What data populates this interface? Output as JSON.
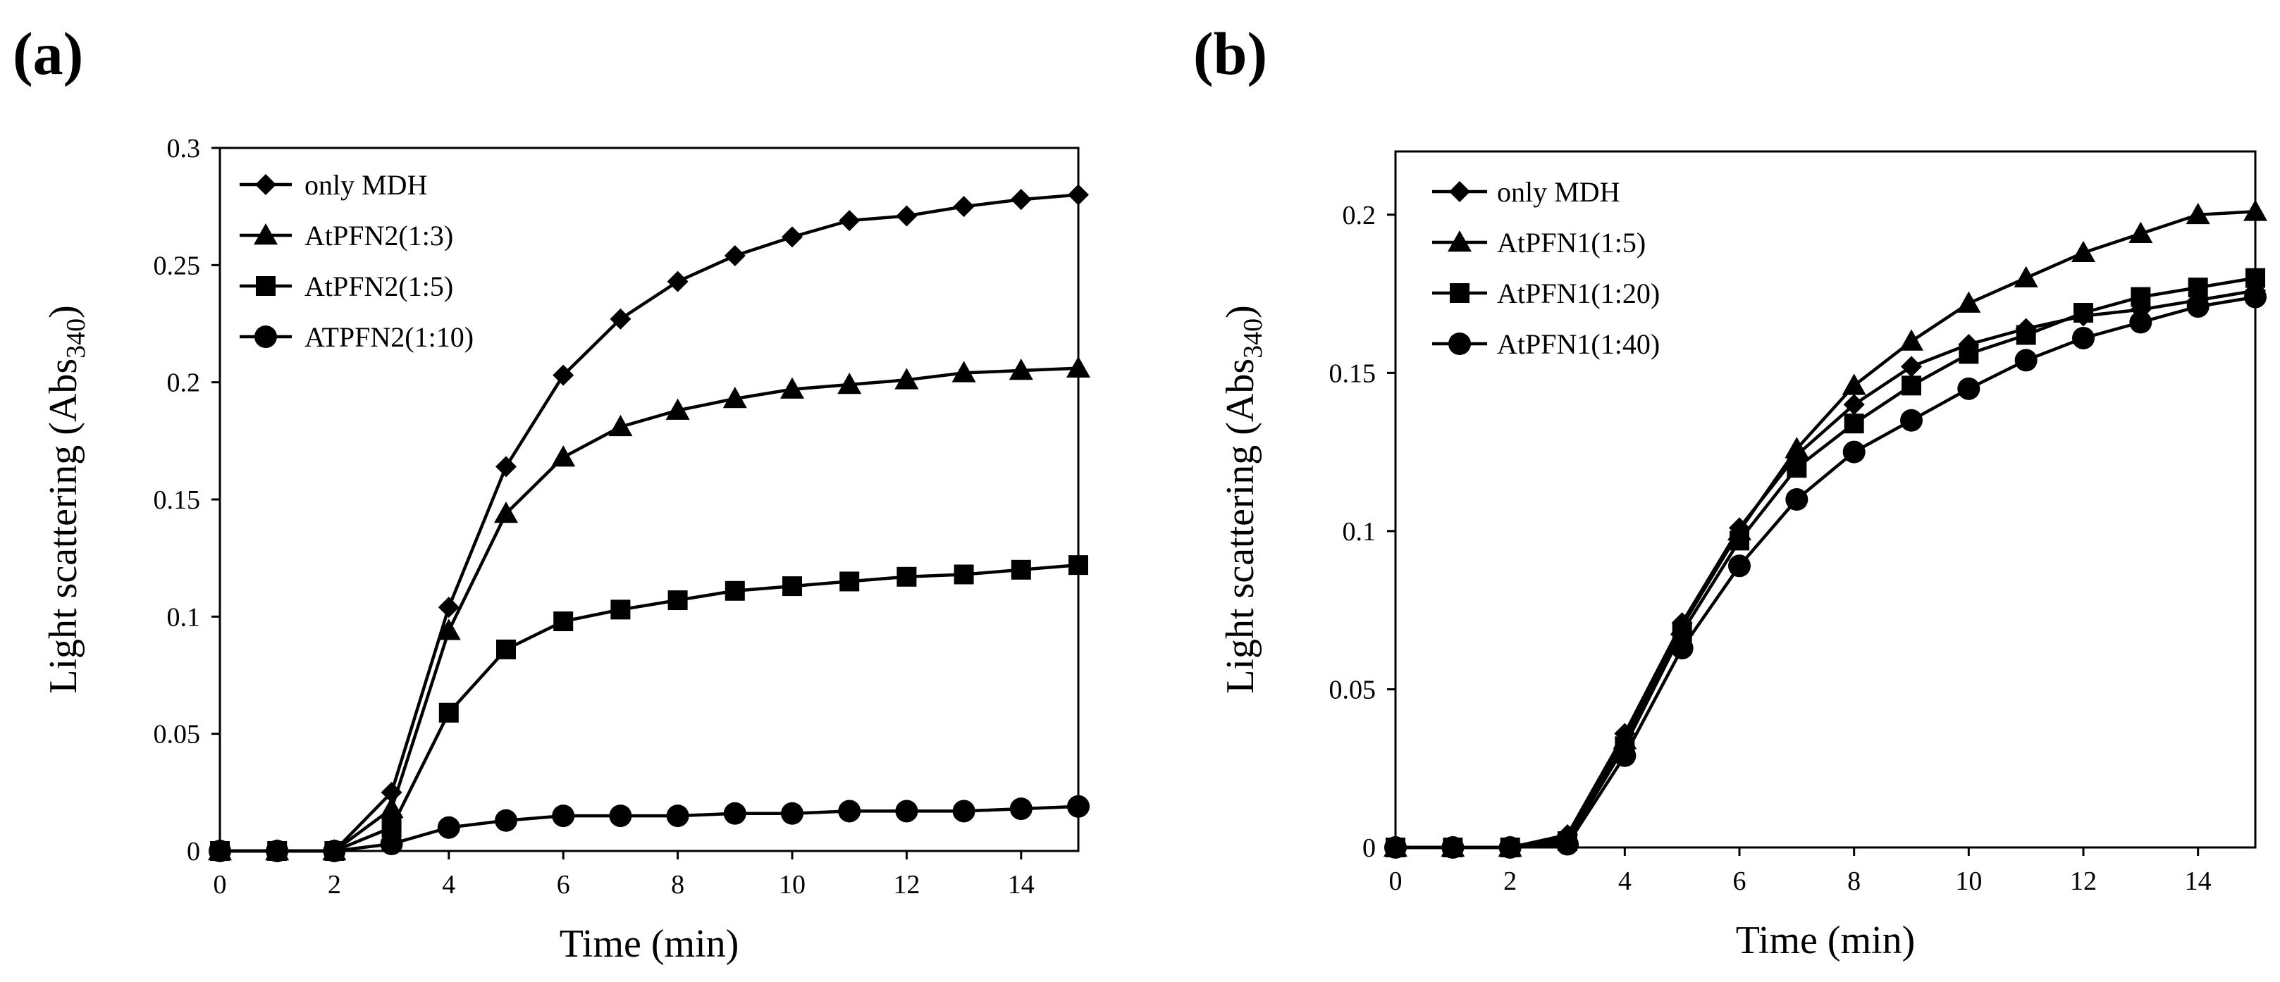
{
  "chart_data": [
    {
      "panel": "(a)",
      "type": "line",
      "title": "",
      "xlabel": "Time (min)",
      "ylabel_main": "Light scattering (Abs",
      "ylabel_sub": "340",
      "ylabel_close": ")",
      "xlim": [
        0,
        15
      ],
      "ylim": [
        0,
        0.3
      ],
      "xticks": [
        0,
        2,
        4,
        6,
        8,
        10,
        12,
        14
      ],
      "xtick_labels": [
        "0",
        "2",
        "4",
        "6",
        "8",
        "10",
        "12",
        "14"
      ],
      "yticks": [
        0,
        0.05,
        0.1,
        0.15,
        0.2,
        0.25,
        0.3
      ],
      "ytick_labels": [
        "0",
        "0.05",
        "0.1",
        "0.15",
        "0.2",
        "0.25",
        "0.3"
      ],
      "legend_position": "top-left",
      "x": [
        0,
        1,
        2,
        3,
        4,
        5,
        6,
        7,
        8,
        9,
        10,
        11,
        12,
        13,
        14,
        15
      ],
      "series": [
        {
          "name": "only MDH",
          "marker": "diamond",
          "values": [
            0,
            0,
            0,
            0.025,
            0.104,
            0.164,
            0.203,
            0.227,
            0.243,
            0.254,
            0.262,
            0.269,
            0.271,
            0.275,
            0.278,
            0.28
          ]
        },
        {
          "name": "AtPFN2(1:3)",
          "marker": "triangle",
          "values": [
            0,
            0,
            0,
            0.018,
            0.094,
            0.144,
            0.168,
            0.181,
            0.188,
            0.193,
            0.197,
            0.199,
            0.201,
            0.204,
            0.205,
            0.206
          ]
        },
        {
          "name": "AtPFN2(1:5)",
          "marker": "square",
          "values": [
            0,
            0,
            0,
            0.01,
            0.059,
            0.086,
            0.098,
            0.103,
            0.107,
            0.111,
            0.113,
            0.115,
            0.117,
            0.118,
            0.12,
            0.122
          ]
        },
        {
          "name": "ATPFN2(1:10)",
          "marker": "circle",
          "values": [
            0,
            0,
            0,
            0.003,
            0.01,
            0.013,
            0.015,
            0.015,
            0.015,
            0.016,
            0.016,
            0.017,
            0.017,
            0.017,
            0.018,
            0.019
          ]
        }
      ]
    },
    {
      "panel": "(b)",
      "type": "line",
      "title": "",
      "xlabel": "Time (min)",
      "ylabel_main": "Light scattering (Abs",
      "ylabel_sub": "340",
      "ylabel_close": ")",
      "xlim": [
        0,
        15
      ],
      "ylim": [
        0,
        0.22
      ],
      "xticks": [
        0,
        2,
        4,
        6,
        8,
        10,
        12,
        14
      ],
      "xtick_labels": [
        "0",
        "2",
        "4",
        "6",
        "8",
        "10",
        "12",
        "14"
      ],
      "yticks": [
        0,
        0.05,
        0.1,
        0.15,
        0.2
      ],
      "ytick_labels": [
        "0",
        "0.05",
        "0.1",
        "0.15",
        "0.2"
      ],
      "legend_position": "top-left",
      "x": [
        0,
        1,
        2,
        3,
        4,
        5,
        6,
        7,
        8,
        9,
        10,
        11,
        12,
        13,
        14,
        15
      ],
      "series": [
        {
          "name": "only MDH",
          "marker": "diamond",
          "values": [
            0,
            0,
            0,
            0.004,
            0.036,
            0.071,
            0.101,
            0.124,
            0.14,
            0.152,
            0.159,
            0.164,
            0.168,
            0.17,
            0.173,
            0.176
          ]
        },
        {
          "name": "AtPFN1(1:5)",
          "marker": "triangle",
          "values": [
            0,
            0,
            0,
            0.003,
            0.034,
            0.07,
            0.1,
            0.126,
            0.146,
            0.16,
            0.172,
            0.18,
            0.188,
            0.194,
            0.2,
            0.201
          ]
        },
        {
          "name": "AtPFN1(1:20)",
          "marker": "square",
          "values": [
            0,
            0,
            0,
            0.002,
            0.032,
            0.068,
            0.097,
            0.12,
            0.134,
            0.146,
            0.156,
            0.162,
            0.169,
            0.174,
            0.177,
            0.18
          ]
        },
        {
          "name": "AtPFN1(1:40)",
          "marker": "circle",
          "values": [
            0,
            0,
            0,
            0.001,
            0.029,
            0.063,
            0.089,
            0.11,
            0.125,
            0.135,
            0.145,
            0.154,
            0.161,
            0.166,
            0.171,
            0.174
          ]
        }
      ]
    }
  ]
}
